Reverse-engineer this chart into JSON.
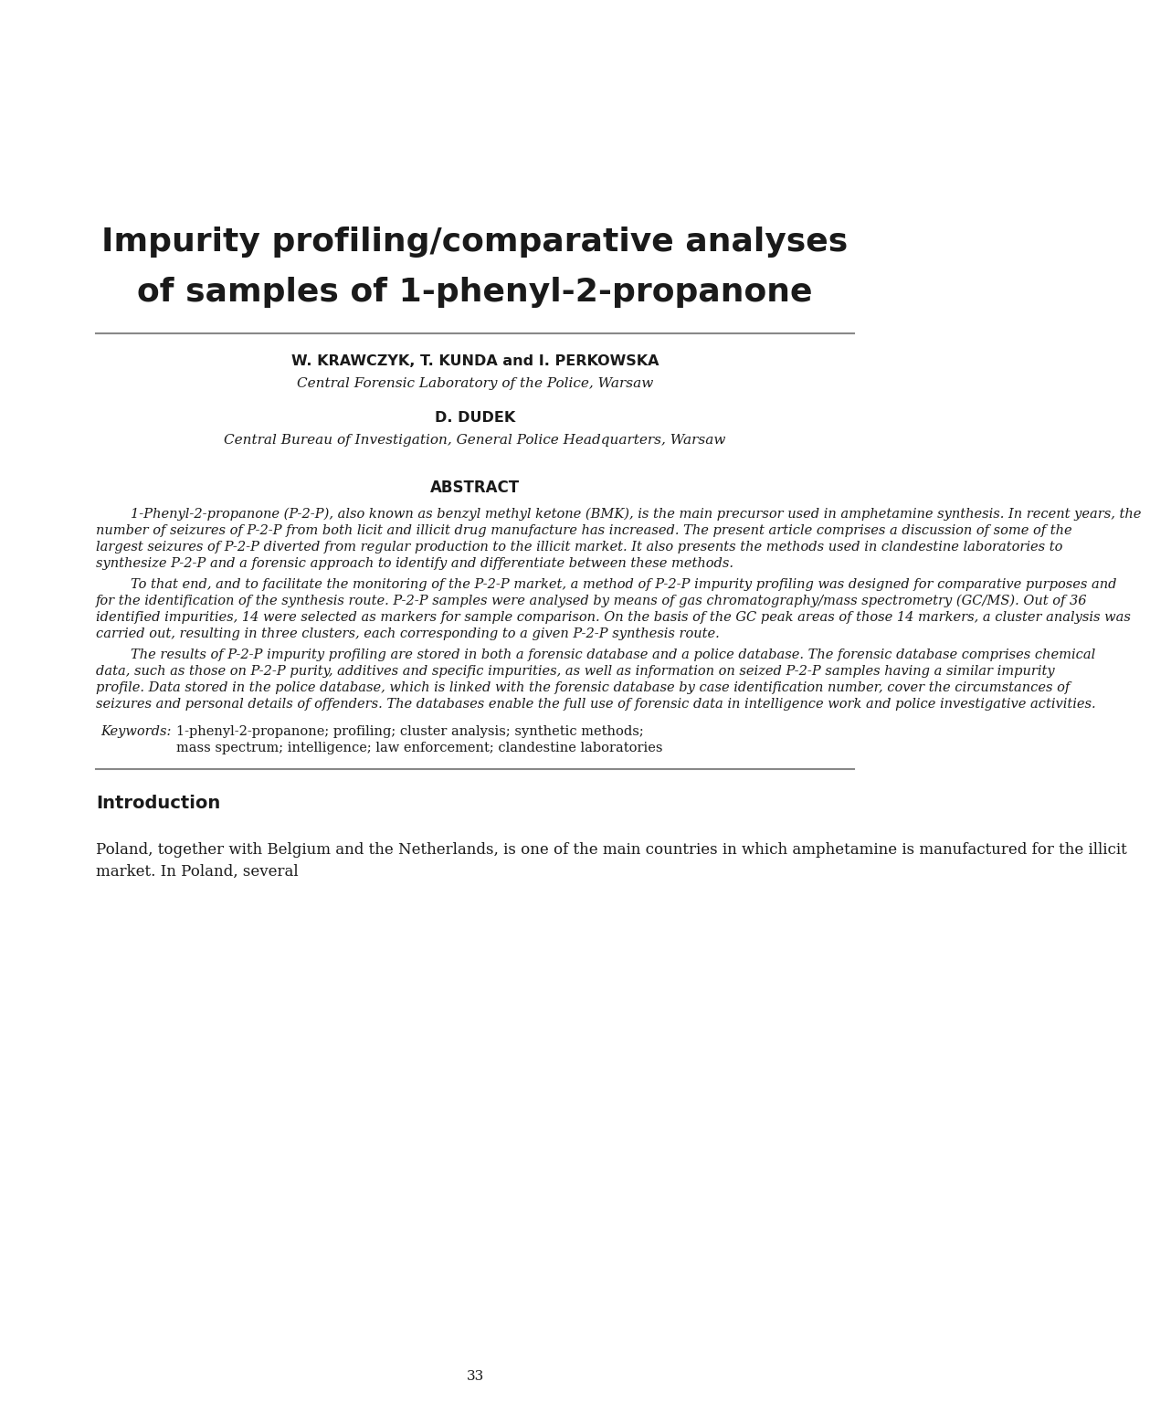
{
  "bg_color": "#ffffff",
  "title_line1": "Impurity profiling/comparative analyses",
  "title_line2": "of samples of 1-phenyl-2-propanone",
  "author1": "W. KRAWCZYK, T. KUNDA and I. PERKOWSKA",
  "affil1": "Central Forensic Laboratory of the Police, Warsaw",
  "author2": "D. DUDEK",
  "affil2": "Central Bureau of Investigation, General Police Headquarters, Warsaw",
  "abstract_heading": "ABSTRACT",
  "abstract_p1": "1-Phenyl-2-propanone (P-2-P), also known as benzyl methyl ketone (BMK), is the main precursor used in amphetamine synthesis. In recent years, the number of seizures of P-2-P from both licit and illicit drug manufacture has increased. The present article comprises a discussion of some of the largest seizures of P-2-P diverted from regular production to the illicit market. It also presents the methods used in clandestine laboratories to synthesize P-2-P and a forensic approach to identify and differentiate between these methods.",
  "abstract_p2": "To that end, and to facilitate the monitoring of the P-2-P market, a method of P-2-P impurity profiling was designed for comparative purposes and for the identification of the synthesis route. P-2-P samples were analysed by means of gas chromatography/mass spectrometry (GC/MS). Out of 36 identified impurities, 14 were selected as markers for sample comparison. On the basis of the GC peak areas of those 14 markers, a cluster analysis was carried out, resulting in three clusters, each corresponding to a given P-2-P synthesis route.",
  "abstract_p3": "The results of P-2-P impurity profiling are stored in both a forensic database and a police database. The forensic database comprises chemical data, such as those on P-2-P purity, additives and specific impurities, as well as information on seized P-2-P samples having a similar impurity profile. Data stored in the police database, which is linked with the forensic database by case identification number, cover the circumstances of seizures and personal details of offenders. The databases enable the full use of forensic data in intelligence work and police investigative activities.",
  "keywords_label": "Keywords:",
  "keywords_line1": "1-phenyl-2-propanone; profiling; cluster analysis; synthetic methods;",
  "keywords_line2": "mass spectrum; intelligence; law enforcement; clandestine laboratories",
  "intro_heading": "Introduction",
  "intro_p1": "Poland, together with Belgium and the Netherlands, is one of the main countries in which amphetamine is manufactured for the illicit market. In Poland, several",
  "page_number": "33"
}
